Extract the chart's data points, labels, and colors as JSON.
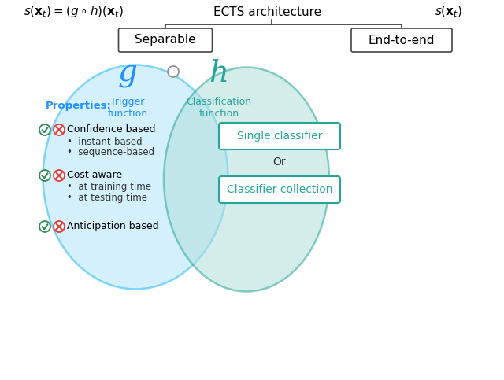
{
  "title": "ECTS architecture",
  "formula_left": "$s(\\mathbf{x}_t) = (g \\circ h)(\\mathbf{x}_t)$",
  "formula_right": "$s(\\mathbf{x}_t)$",
  "separable_label": "Separable",
  "end_to_end_label": "End-to-end",
  "g_label": "g",
  "g_sublabel": "Trigger\nfunction",
  "h_label": "h",
  "h_sublabel": "Classification\nfunction",
  "properties_label": "Properties:",
  "item_texts": [
    "Confidence based",
    "Cost aware",
    "Anticipation based"
  ],
  "subitems": [
    [
      "instant-based",
      "sequence-based"
    ],
    [
      "at training time",
      "at testing time"
    ],
    []
  ],
  "box1_label": "Single classifier",
  "or_label": "Or",
  "box2_label": "Classifier collection",
  "ellipse1_color": "#b3e5fc",
  "ellipse1_edge": "#29b6f6",
  "ellipse2_color": "#b2dfdb",
  "ellipse2_edge": "#26a69a",
  "g_color": "#1e90ff",
  "h_color": "#26a69a",
  "check_color": "#2e8b57",
  "cross_color": "#e53935",
  "props_color": "#1e90ff",
  "box_edge_color": "#26a69a",
  "box_text_color": "#26a69a",
  "tree_line_color": "#333333"
}
